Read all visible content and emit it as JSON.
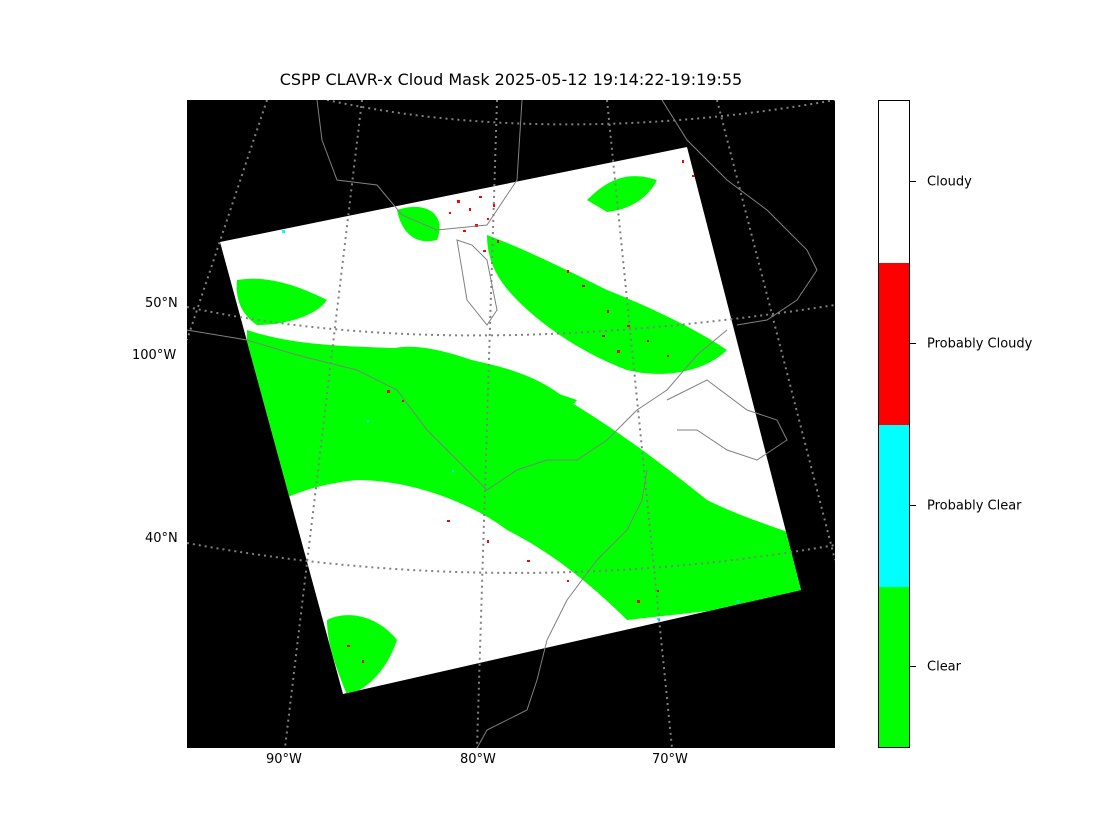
{
  "title": "CSPP CLAVR-x Cloud Mask 2025-05-12 19:14:22-19:19:55",
  "map": {
    "background_color": "#000000",
    "boundary_color": "#808080",
    "graticule_color": "#808080",
    "lat_labels": [
      "50°N",
      "40°N"
    ],
    "lon_labels_left": [
      "100°W"
    ],
    "lon_labels_bottom": [
      "90°W",
      "80°W",
      "70°W"
    ]
  },
  "legend": {
    "categories": [
      {
        "label": "Cloudy",
        "color": "#ffffff"
      },
      {
        "label": "Probably Cloudy",
        "color": "#ff0000"
      },
      {
        "label": "Probably Clear",
        "color": "#00ffff"
      },
      {
        "label": "Clear",
        "color": "#00ff00"
      }
    ]
  }
}
